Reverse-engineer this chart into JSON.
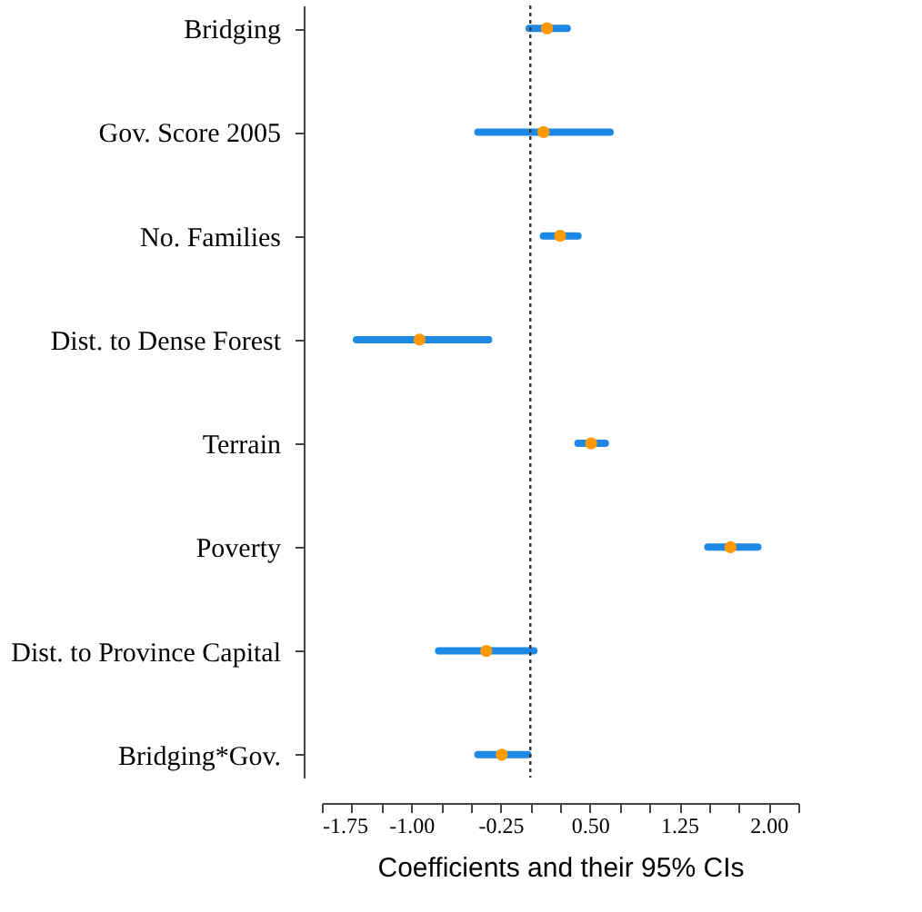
{
  "chart_data": {
    "type": "scatter",
    "orientation": "horizontal",
    "xlabel": "Coefficients and their 95% CIs",
    "categories": [
      "Bridging",
      "Gov. Score 2005",
      "No. Families",
      "Dist. to Dense Forest",
      "Terrain",
      "Poverty",
      "Dist. to Province Capital",
      "Bridging*Gov."
    ],
    "series": [
      {
        "color": "#ff9900",
        "values": [
          0.14,
          0.11,
          0.25,
          -0.93,
          0.51,
          1.68,
          -0.37,
          -0.24
        ],
        "errors": [
          [
            -0.01,
            0.31
          ],
          [
            -0.44,
            0.67
          ],
          [
            0.11,
            0.4
          ],
          [
            -1.46,
            -0.35
          ],
          [
            0.4,
            0.63
          ],
          [
            1.49,
            1.91
          ],
          [
            -0.77,
            0.03
          ],
          [
            -0.44,
            -0.02
          ]
        ]
      }
    ],
    "xlim": [
      -1.75,
      2.25
    ],
    "xticks": [
      -1.75,
      {
        "value": -1.5,
        "label": null
      },
      {
        "value": -1.25,
        "label": null
      },
      {
        "value": -1,
        "label": "-1.00"
      },
      {
        "value": -0.75,
        "label": null
      },
      {
        "value": -0.5,
        "label": null
      },
      -0.25,
      {
        "value": 0,
        "label": null
      },
      {
        "value": 0.25,
        "label": null
      },
      {
        "value": 0.5,
        "label": "0.50"
      },
      {
        "value": 0.75,
        "label": null
      },
      {
        "value": 1.0,
        "label": null
      },
      1.25,
      {
        "value": 1.5,
        "label": null
      },
      {
        "value": 1.75,
        "label": null
      },
      {
        "value": 2,
        "label": "2.00"
      },
      {
        "value": 2.25,
        "label": null
      }
    ],
    "ref_lines": [
      {
        "axis": "x",
        "value": 0,
        "line_style": "dotted",
        "color": "#333333"
      }
    ],
    "marker": "circle",
    "grid": false,
    "legend": false
  }
}
